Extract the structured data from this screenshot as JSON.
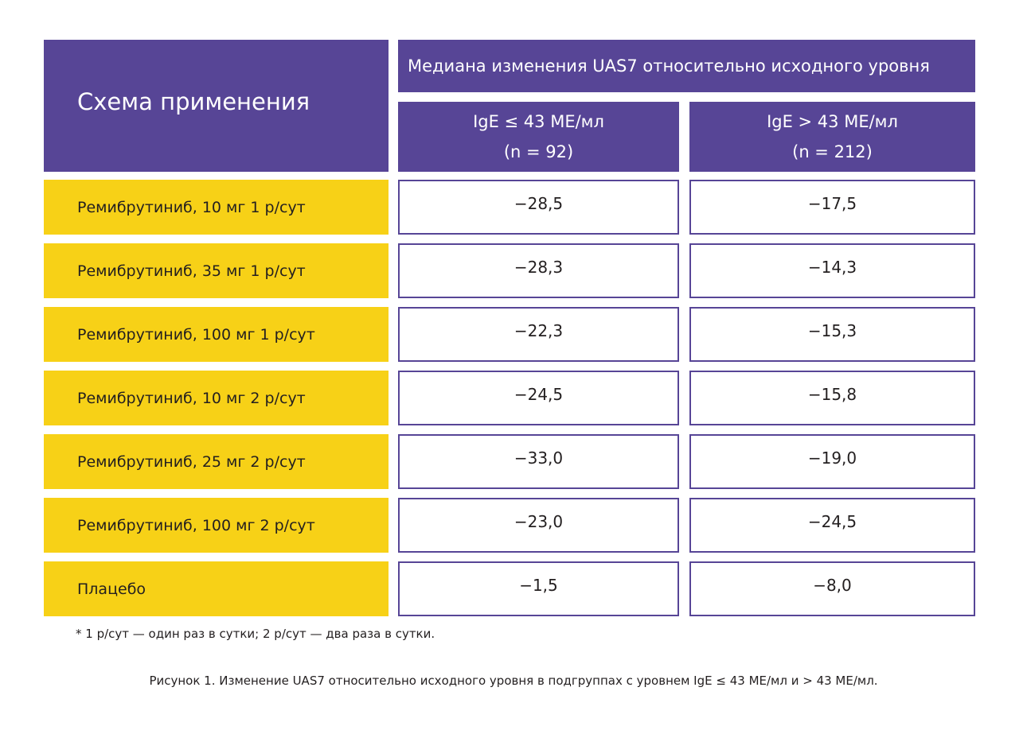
{
  "header": {
    "scheme_label": "Схема применения",
    "group_label": "Медиана изменения UAS7 относительно исходного уровня",
    "columns": [
      {
        "label": "IgE ≤ 43 МЕ/мл",
        "n": "(n = 92)"
      },
      {
        "label": "IgE > 43 МЕ/мл",
        "n": "(n = 212)"
      }
    ]
  },
  "rows": [
    {
      "scheme": "Ремибрутиниб, 10 мг 1 р/сут",
      "low": "−28,5",
      "high": "−17,5"
    },
    {
      "scheme": "Ремибрутиниб, 35 мг 1 р/сут",
      "low": "−28,3",
      "high": "−14,3"
    },
    {
      "scheme": "Ремибрутиниб, 100 мг 1 р/сут",
      "low": "−22,3",
      "high": "−15,3"
    },
    {
      "scheme": "Ремибрутиниб, 10 мг 2 р/сут",
      "low": "−24,5",
      "high": "−15,8"
    },
    {
      "scheme": "Ремибрутиниб, 25 мг 2 р/сут",
      "low": "−33,0",
      "high": "−19,0"
    },
    {
      "scheme": "Ремибрутиниб, 100 мг 2 р/сут",
      "low": "−23,0",
      "high": "−24,5"
    },
    {
      "scheme": "Плацебо",
      "low": "−1,5",
      "high": "−8,0"
    }
  ],
  "footnote": "* 1 р/сут — один раз в сутки; 2 р/сут — два раза в сутки.",
  "caption": "Рисунок 1. Изменение UAS7 относительно исходного уровня в подгруппах с уровнем IgE ≤ 43 МЕ/мл и > 43 МЕ/мл.",
  "colors": {
    "header": "#574596",
    "scheme_cell": "#f7d117"
  }
}
